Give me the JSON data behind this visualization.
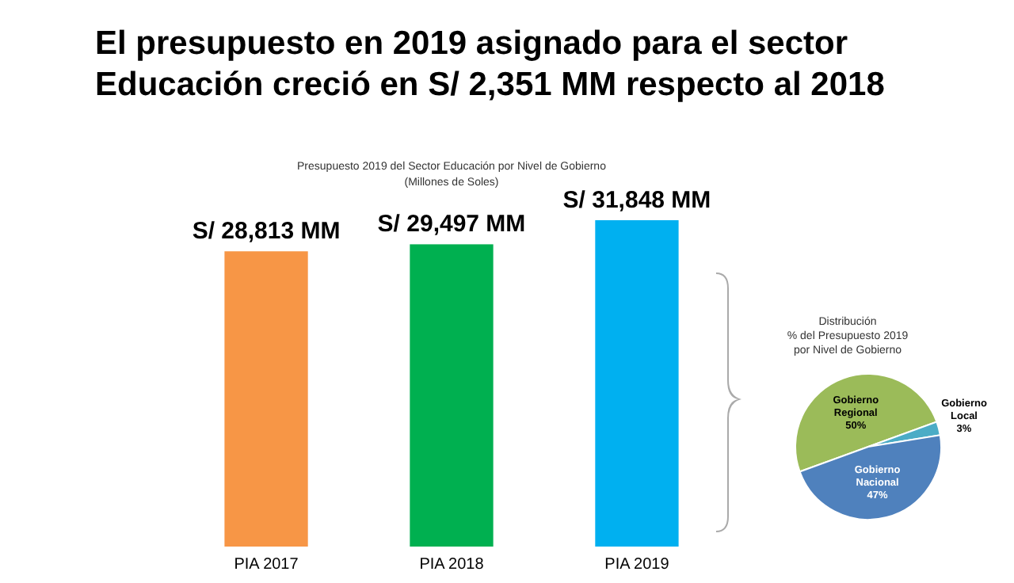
{
  "chart_data": [
    {
      "type": "bar",
      "title": "El presupuesto en 2019 asignado para el sector\nEducación creció en S/ 2,351 MM respecto al 2018",
      "subtitle": "Presupuesto 2019 del Sector Educación por  Nivel de Gobierno\n(Millones de Soles)",
      "categories": [
        "PIA 2017",
        "PIA 2018",
        "PIA 2019"
      ],
      "values": [
        28813,
        29497,
        31848
      ],
      "colors": [
        "#f79646",
        "#00b050",
        "#00b0f0"
      ],
      "value_labels": [
        "S/ 28,813 MM",
        "S/ 29,497 MM",
        "S/ 31,848 MM"
      ]
    },
    {
      "type": "pie",
      "title": "Distribución\n% del Presupuesto 2019\npor Nivel de Gobierno",
      "categories": [
        "Gobierno Regional",
        "Gobierno Local",
        "Gobierno Nacional"
      ],
      "values": [
        50,
        3,
        47
      ],
      "colors": [
        "#9bbb59",
        "#4bacc6",
        "#4f81bd"
      ],
      "value_labels": [
        "50%",
        "3%",
        "47%"
      ]
    }
  ]
}
